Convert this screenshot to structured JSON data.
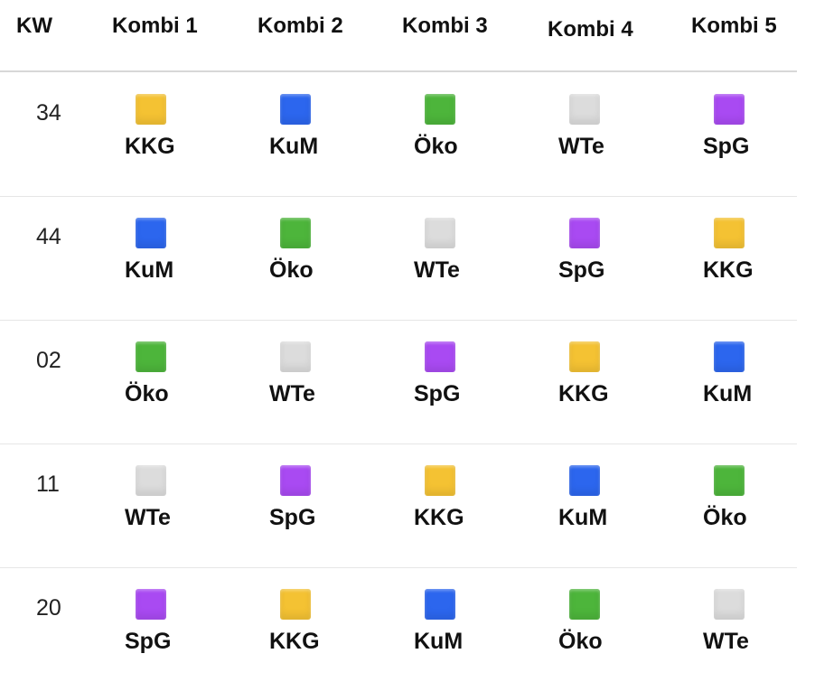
{
  "header": {
    "kw": "KW",
    "col1": "Kombi 1",
    "col2": "Kombi 2",
    "col3": "Kombi 3",
    "col4": "Kombi  4",
    "col5": "Kombi 5"
  },
  "colors": {
    "KKG": "#f4c233",
    "KuM": "#2c66ee",
    "Öko": "#4db53b",
    "WTe": "#dcdcdc",
    "SpG": "#a94af2"
  },
  "rows": [
    {
      "kw": "34",
      "cells": [
        "KKG",
        "KuM",
        "Öko",
        "WTe",
        "SpG"
      ]
    },
    {
      "kw": "44",
      "cells": [
        "KuM",
        "Öko",
        "WTe",
        "SpG",
        "KKG"
      ]
    },
    {
      "kw": "02",
      "cells": [
        "Öko",
        "WTe",
        "SpG",
        "KKG",
        "KuM"
      ]
    },
    {
      "kw": "11",
      "cells": [
        "WTe",
        "SpG",
        "KKG",
        "KuM",
        "Öko"
      ]
    },
    {
      "kw": "20",
      "cells": [
        "SpG",
        "KKG",
        "KuM",
        "Öko",
        "WTe"
      ]
    }
  ]
}
